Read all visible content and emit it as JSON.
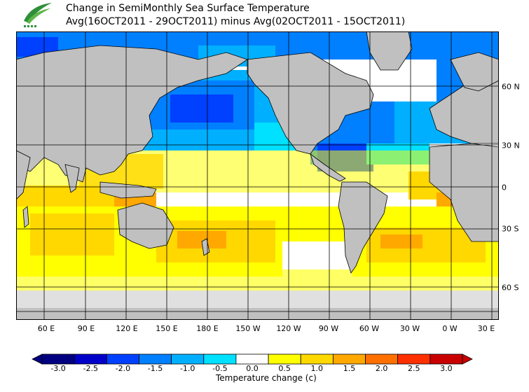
{
  "title": {
    "line1": "Change in SemiMonthly Sea Surface Temperature",
    "line2": "Avg(16OCT2011 - 29OCT2011) minus Avg(02OCT2011 - 15OCT2011)"
  },
  "map": {
    "lon_labels": [
      "60 E",
      "90 E",
      "120 E",
      "150 E",
      "180 E",
      "150 W",
      "120 W",
      "90 W",
      "60 W",
      "30 W",
      "0 W",
      "30 E"
    ],
    "lat_labels": [
      "60 N",
      "30 N",
      "0",
      "30 S",
      "60 S"
    ],
    "land_color": "#c0c0c0",
    "ice_color": "#e0e0e0"
  },
  "colorbar": {
    "labels": [
      "-3.0",
      "-2.5",
      "-2.0",
      "-1.5",
      "-1.0",
      "-0.5",
      "0.0",
      "0.5",
      "1.0",
      "1.5",
      "2.0",
      "2.5",
      "3.0"
    ],
    "colors": [
      "#000080",
      "#0000c8",
      "#0040ff",
      "#0080ff",
      "#00b0ff",
      "#00e0ff",
      "#ffffff",
      "#ffff00",
      "#ffd800",
      "#ffa800",
      "#ff7000",
      "#ff3000",
      "#c80000"
    ],
    "units": "Temperature change  (c)"
  }
}
